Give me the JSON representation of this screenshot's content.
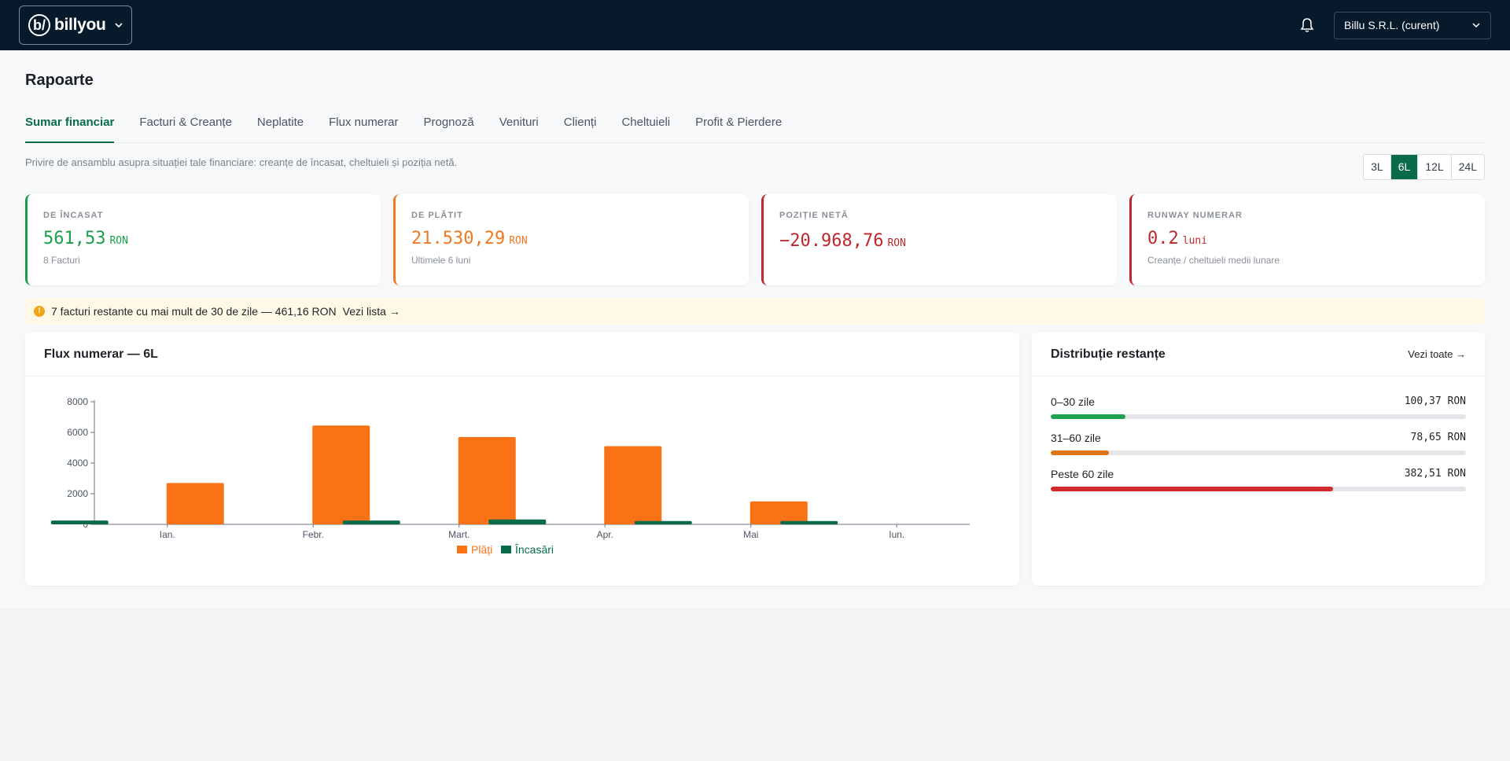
{
  "topbar": {
    "brand_mark": "b/",
    "brand_name": "billyou",
    "company_selector": "Billu S.R.L. (curent)"
  },
  "page": {
    "title": "Rapoarte"
  },
  "tabs": [
    {
      "label": "Sumar financiar",
      "active": true
    },
    {
      "label": "Facturi & Creanțe"
    },
    {
      "label": "Neplatite"
    },
    {
      "label": "Flux numerar"
    },
    {
      "label": "Prognoză"
    },
    {
      "label": "Venituri"
    },
    {
      "label": "Clienți"
    },
    {
      "label": "Cheltuieli"
    },
    {
      "label": "Profit & Pierdere"
    }
  ],
  "subtitle": "Privire de ansamblu asupra situației tale financiare: creanțe de încasat, cheltuieli și poziția netă.",
  "period_options": [
    {
      "label": "3L"
    },
    {
      "label": "6L",
      "active": true
    },
    {
      "label": "12L"
    },
    {
      "label": "24L"
    }
  ],
  "kpis": [
    {
      "label": "DE ÎNCASAT",
      "value": "561,53",
      "unit": "RON",
      "sub": "8 Facturi",
      "color": "#1a9e4b"
    },
    {
      "label": "DE PLĂTIT",
      "value": "21.530,29",
      "unit": "RON",
      "sub": "Ultimele 6 luni",
      "color": "#f07820"
    },
    {
      "label": "POZIȚIE NETĂ",
      "value": "−20.968,76",
      "unit": "RON",
      "sub": "",
      "color": "#c0262d"
    },
    {
      "label": "RUNWAY NUMERAR",
      "value": "0.2",
      "unit": "luni",
      "sub": "Creanțe / cheltuieli medii lunare",
      "color": "#c0262d"
    }
  ],
  "alert": {
    "icon": "!",
    "text": "7 facturi restante cu mai mult de 30 de zile — 461,16 RON",
    "link": "Vezi lista →"
  },
  "cashflow": {
    "title": "Flux numerar — 6L"
  },
  "distribution": {
    "title": "Distribuție restanțe",
    "link": "Vezi toate →",
    "rows": [
      {
        "label": "0–30 zile",
        "value": "100,37 RON",
        "fraction": 0.18,
        "color": "#1fa34c"
      },
      {
        "label": "31–60 zile",
        "value": "78,65 RON",
        "fraction": 0.14,
        "color": "#e0760f"
      },
      {
        "label": "Peste 60 zile",
        "value": "382,51 RON",
        "fraction": 0.68,
        "color": "#d22a2a"
      }
    ]
  },
  "chart_data": {
    "type": "bar",
    "categories": [
      "Ian.",
      "Febr.",
      "Mart.",
      "Apr.",
      "Mai",
      "Iun."
    ],
    "series": [
      {
        "name": "Încasări",
        "color": "#0a6b4a",
        "values": [
          250,
          0,
          250,
          320,
          220,
          220
        ]
      },
      {
        "name": "Plăți",
        "color": "#f97316",
        "values": [
          2700,
          6450,
          5700,
          5100,
          1500,
          0
        ]
      }
    ],
    "legend_order": [
      "Plăți",
      "Încasări"
    ],
    "y_ticks": [
      "0",
      "2000",
      "4000",
      "6000",
      "8000"
    ],
    "ylim": [
      0,
      8000
    ],
    "legend_position": "bottom",
    "grid": false
  }
}
